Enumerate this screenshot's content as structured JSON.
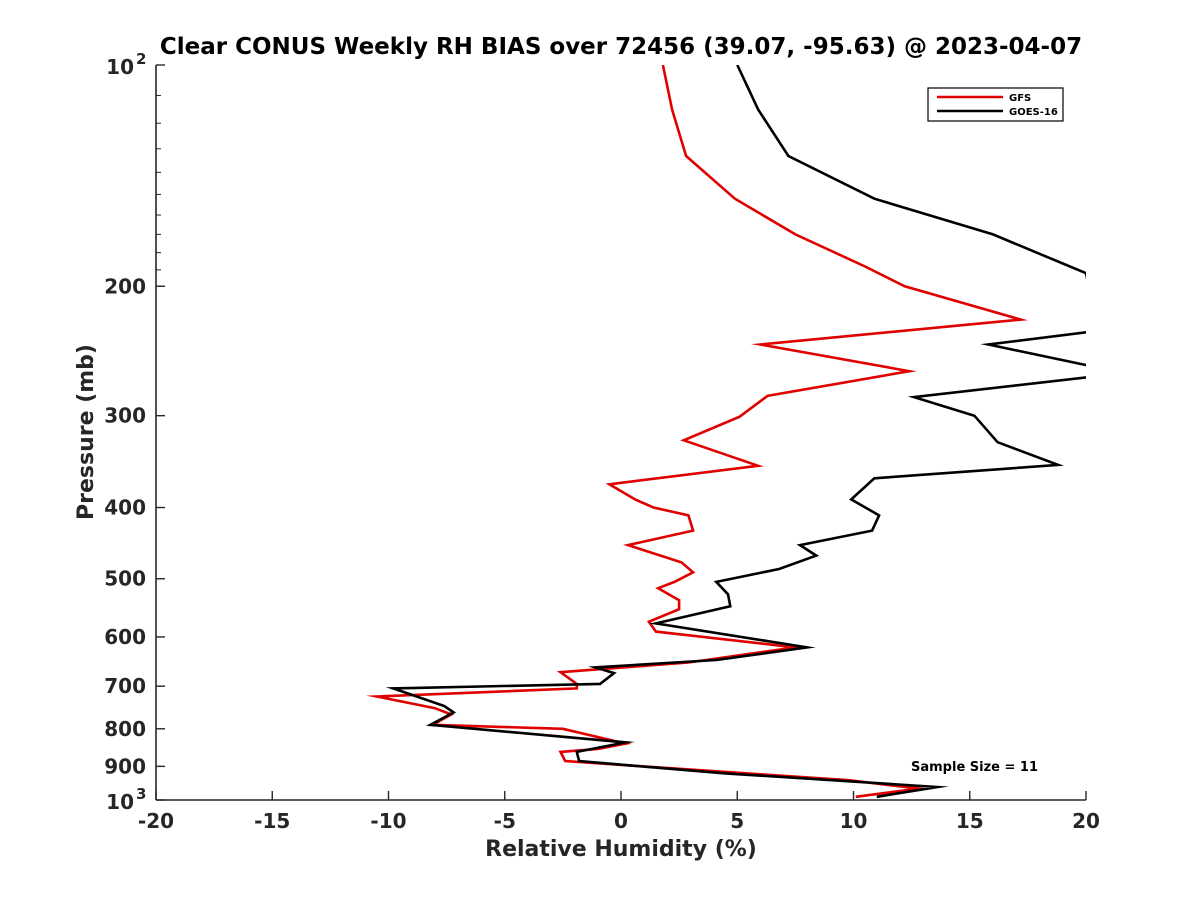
{
  "chart_data": {
    "type": "line",
    "title": "Clear CONUS Weekly RH BIAS over 72456 (39.07, -95.63) @ 2023-04-07",
    "xlabel": "Relative Humidity (%)",
    "ylabel": "Pressure (mb)",
    "xlim": [
      -20,
      20
    ],
    "ylim": [
      100,
      1000
    ],
    "yscale": "log",
    "y_reversed": true,
    "grid": false,
    "legend_position": "top-right",
    "x_ticks": [
      -20,
      -15,
      -10,
      -5,
      0,
      5,
      10,
      15,
      20
    ],
    "x_tick_labels": [
      "-20",
      "-15",
      "-10",
      "-5",
      "0",
      "5",
      "10",
      "15",
      "20"
    ],
    "y_ticks": [
      200,
      300,
      400,
      500,
      600,
      700,
      800,
      900
    ],
    "y_tick_labels": [
      "200",
      "300",
      "400",
      "500",
      "600",
      "700",
      "800",
      "900"
    ],
    "y_tick_top": {
      "base": "10",
      "exp": "2",
      "value": 100
    },
    "y_tick_bottom": {
      "base": "10",
      "exp": "3",
      "value": 1000
    },
    "annotation": "Sample Size = 11",
    "series": [
      {
        "name": "GFS",
        "color": "#e00000",
        "points": [
          [
            1.8,
            100
          ],
          [
            2.2,
            115
          ],
          [
            2.8,
            133
          ],
          [
            4.9,
            152
          ],
          [
            7.5,
            170
          ],
          [
            10.5,
            188
          ],
          [
            12.2,
            200
          ],
          [
            17.2,
            222
          ],
          [
            6.0,
            240
          ],
          [
            12.4,
            261
          ],
          [
            6.3,
            282
          ],
          [
            5.1,
            301
          ],
          [
            2.7,
            324
          ],
          [
            5.9,
            351
          ],
          [
            -0.5,
            372
          ],
          [
            0.6,
            390
          ],
          [
            1.4,
            400
          ],
          [
            2.9,
            410
          ],
          [
            3.1,
            430
          ],
          [
            0.3,
            450
          ],
          [
            2.6,
            475
          ],
          [
            3.1,
            490
          ],
          [
            2.3,
            505
          ],
          [
            1.6,
            515
          ],
          [
            2.5,
            535
          ],
          [
            2.5,
            550
          ],
          [
            1.2,
            572
          ],
          [
            1.5,
            590
          ],
          [
            7.5,
            620
          ],
          [
            2.9,
            650
          ],
          [
            -2.6,
            670
          ],
          [
            -1.9,
            695
          ],
          [
            -1.9,
            705
          ],
          [
            -10.5,
            723
          ],
          [
            -8.0,
            750
          ],
          [
            -7.3,
            765
          ],
          [
            -8.1,
            790
          ],
          [
            -2.5,
            800
          ],
          [
            0.2,
            838
          ],
          [
            -1.0,
            852
          ],
          [
            -2.6,
            860
          ],
          [
            -2.4,
            885
          ],
          [
            0.5,
            898
          ],
          [
            9.8,
            940
          ],
          [
            12.8,
            965
          ],
          [
            10.1,
            990
          ]
        ]
      },
      {
        "name": "GOES-16",
        "color": "#000000",
        "points": [
          [
            5.0,
            100
          ],
          [
            5.9,
            115
          ],
          [
            7.2,
            133
          ],
          [
            10.9,
            152
          ],
          [
            16.0,
            170
          ],
          [
            20.0,
            192
          ],
          [
            20.5,
            230
          ],
          [
            15.8,
            240
          ],
          [
            20.5,
            258
          ],
          [
            20.5,
            265
          ],
          [
            12.6,
            283
          ],
          [
            15.2,
            300
          ],
          [
            16.2,
            326
          ],
          [
            18.8,
            350
          ],
          [
            10.9,
            365
          ],
          [
            9.9,
            390
          ],
          [
            11.1,
            410
          ],
          [
            10.8,
            430
          ],
          [
            7.7,
            450
          ],
          [
            8.4,
            465
          ],
          [
            6.8,
            485
          ],
          [
            4.1,
            505
          ],
          [
            4.6,
            525
          ],
          [
            4.7,
            545
          ],
          [
            1.5,
            575
          ],
          [
            8.0,
            620
          ],
          [
            4.1,
            645
          ],
          [
            -1.1,
            660
          ],
          [
            -0.3,
            672
          ],
          [
            -0.9,
            695
          ],
          [
            -9.8,
            705
          ],
          [
            -7.6,
            745
          ],
          [
            -7.2,
            760
          ],
          [
            -8.2,
            790
          ],
          [
            0.2,
            835
          ],
          [
            -1.9,
            860
          ],
          [
            -1.8,
            885
          ],
          [
            0.9,
            900
          ],
          [
            4.5,
            920
          ],
          [
            13.6,
            960
          ],
          [
            11.0,
            990
          ]
        ]
      }
    ]
  }
}
